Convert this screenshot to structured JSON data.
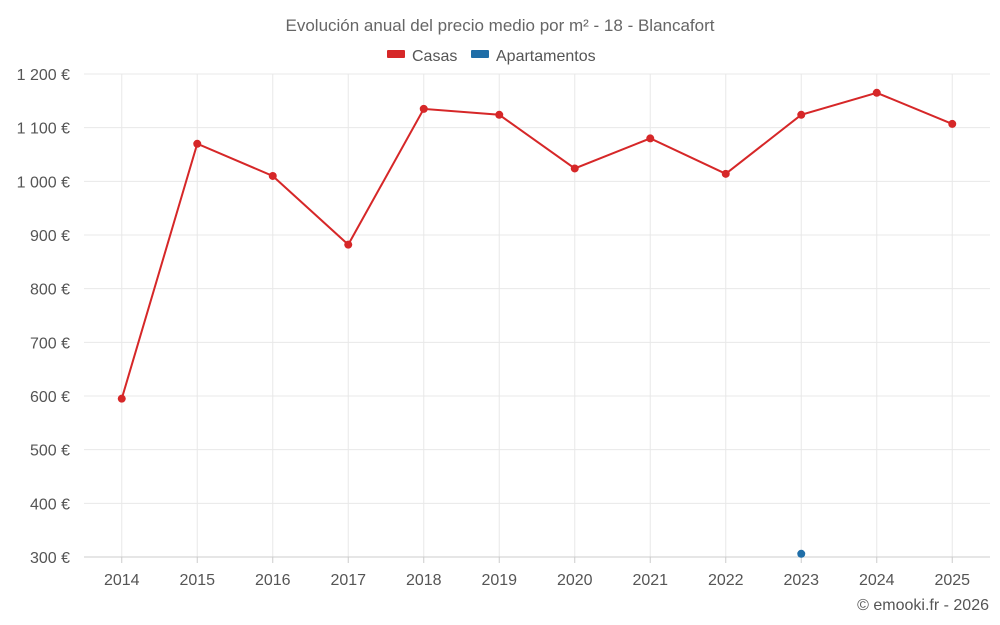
{
  "chart_data": {
    "type": "line",
    "title": "Evolución anual del precio medio por m² - 18 - Blancafort",
    "categories": [
      "2014",
      "2015",
      "2016",
      "2017",
      "2018",
      "2019",
      "2020",
      "2021",
      "2022",
      "2023",
      "2024",
      "2025"
    ],
    "series": [
      {
        "name": "Casas",
        "color": "#d62728",
        "values": [
          595,
          1070,
          1010,
          882,
          1135,
          1124,
          1024,
          1080,
          1014,
          1124,
          1165,
          1107
        ]
      },
      {
        "name": "Apartamentos",
        "color": "#1f6ea8",
        "values": [
          null,
          null,
          null,
          null,
          null,
          null,
          null,
          null,
          null,
          306,
          null,
          null
        ]
      }
    ],
    "y_ticks": [
      "300 €",
      "400 €",
      "500 €",
      "600 €",
      "700 €",
      "800 €",
      "900 €",
      "1 000 €",
      "1 100 €",
      "1 200 €"
    ],
    "ylim": [
      300,
      1200
    ],
    "xlabel": "",
    "ylabel": "",
    "legend_position": "top-center",
    "grid": true,
    "credit": "© emooki.fr - 2026"
  }
}
